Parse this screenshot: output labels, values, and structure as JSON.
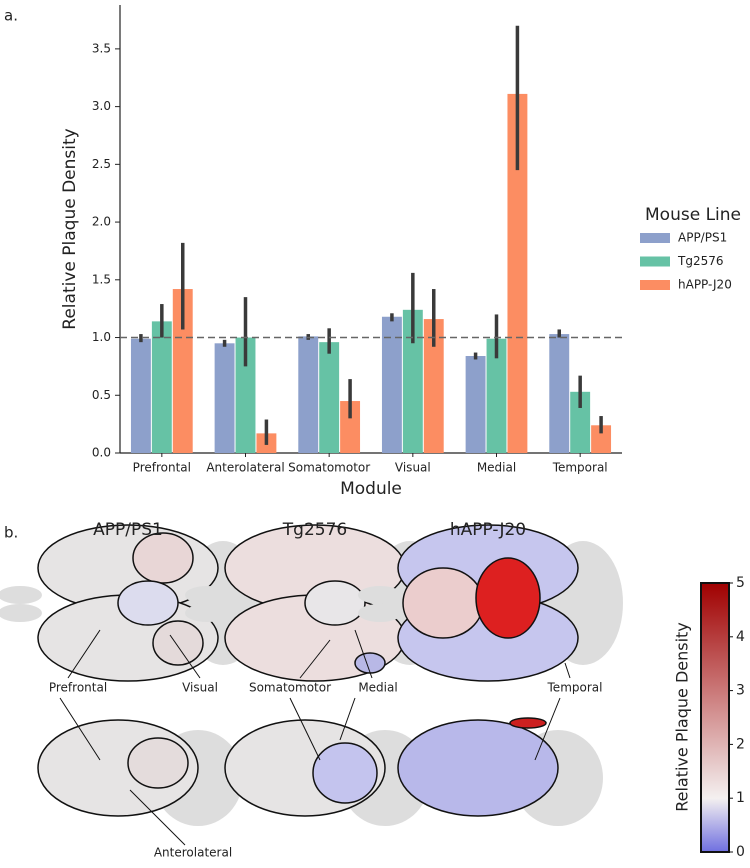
{
  "chart_data": {
    "type": "bar",
    "panel_label": "a.",
    "categories": [
      "Prefrontal",
      "Anterolateral",
      "Somatomotor",
      "Visual",
      "Medial",
      "Temporal"
    ],
    "series": [
      {
        "name": "APP/PS1",
        "color": "#8da0cb",
        "values": [
          0.99,
          0.95,
          1.01,
          1.18,
          0.84,
          1.03
        ],
        "ci_low": [
          0.96,
          0.92,
          0.98,
          1.14,
          0.81,
          1.0
        ],
        "ci_high": [
          1.03,
          0.98,
          1.03,
          1.21,
          0.87,
          1.07
        ]
      },
      {
        "name": "Tg2576",
        "color": "#66c2a5",
        "values": [
          1.14,
          1.0,
          0.96,
          1.24,
          0.99,
          0.53
        ],
        "ci_low": [
          1.0,
          0.75,
          0.86,
          0.95,
          0.82,
          0.39
        ],
        "ci_high": [
          1.29,
          1.35,
          1.08,
          1.56,
          1.2,
          0.67
        ]
      },
      {
        "name": "hAPP-J20",
        "color": "#fc8d62",
        "values": [
          1.42,
          0.17,
          0.45,
          1.16,
          3.11,
          0.24
        ],
        "ci_low": [
          1.07,
          0.07,
          0.3,
          0.92,
          2.45,
          0.17
        ],
        "ci_high": [
          1.82,
          0.29,
          0.64,
          1.42,
          3.7,
          0.32
        ]
      }
    ],
    "xlabel": "Module",
    "ylabel": "Relative Plaque Density",
    "ylim": [
      0,
      3.88
    ],
    "yticks": [
      {
        "value": 0,
        "label": "0.0"
      },
      0.5,
      {
        "value": 1,
        "label": "1.0"
      },
      1.5,
      {
        "value": 2,
        "label": "2.0"
      },
      2.5,
      {
        "value": 3,
        "label": "3.0"
      },
      3.5
    ],
    "reference_line": 1,
    "legend_title": "Mouse Line",
    "legend_position": "right"
  },
  "panel_b": {
    "panel_label": "b.",
    "colorbar": {
      "label": "Relative Plaque Density",
      "lim": [
        0,
        5
      ],
      "ticks": [
        0,
        1,
        2,
        3,
        4,
        5
      ]
    }
  }
}
